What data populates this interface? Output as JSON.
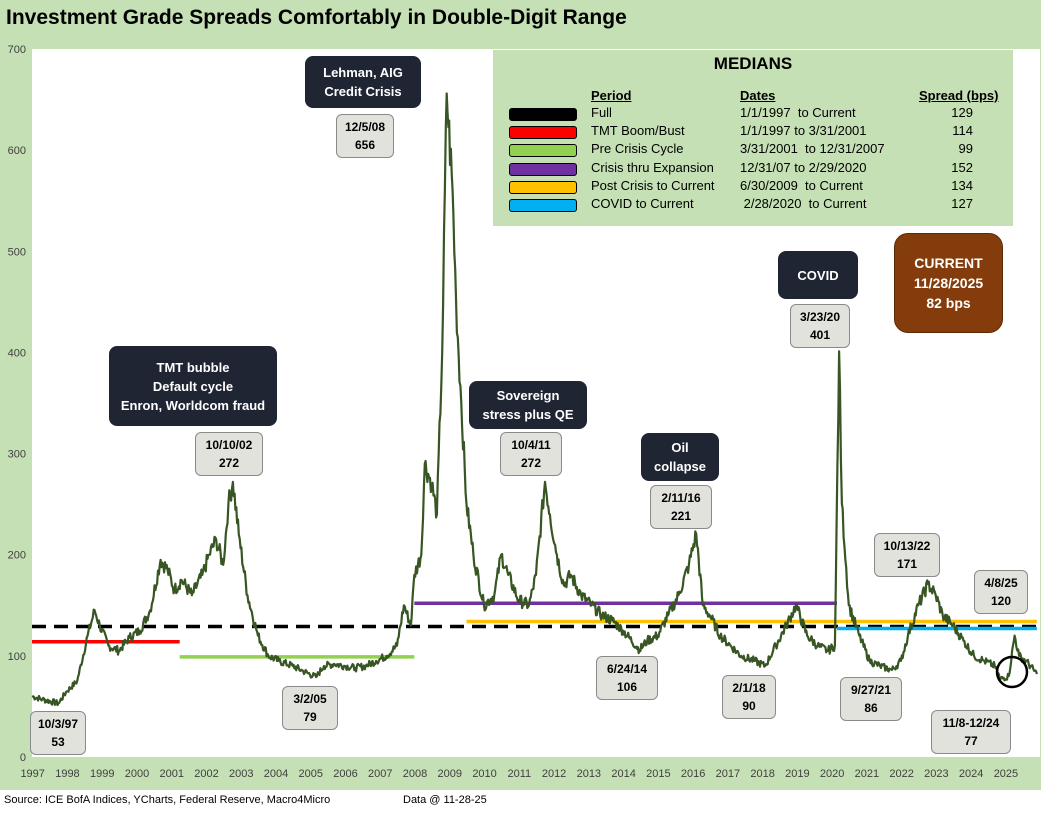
{
  "title": "Investment Grade Spreads Comfortably in Double-Digit Range",
  "footer": {
    "source": "Source: ICE BofA Indices, YCharts, Federal Reserve, Macro4Micro",
    "data_date": "Data @ 11-28-25"
  },
  "medians_table": {
    "title": "MEDIANS",
    "headers": {
      "period": "Period",
      "dates": "Dates",
      "spread": "Spread (bps)"
    },
    "rows": [
      {
        "period": "Full",
        "dates": "1/1/1997  to Current",
        "spread": "129",
        "color": "#000000"
      },
      {
        "period": "TMT Boom/Bust",
        "dates": "1/1/1997 to 3/31/2001",
        "spread": "114",
        "color": "#ff0000"
      },
      {
        "period": "Pre Crisis Cycle",
        "dates": "3/31/2001  to 12/31/2007",
        "spread": "99",
        "color": "#92d050"
      },
      {
        "period": "Crisis thru Expansion",
        "dates": "12/31/07 to 2/29/2020",
        "spread": "152",
        "color": "#7030a0"
      },
      {
        "period": "Post Crisis to Current",
        "dates": "6/30/2009  to Current",
        "spread": "134",
        "color": "#ffc000"
      },
      {
        "period": "COVID to Current",
        "dates": " 2/28/2020  to Current",
        "spread": "127",
        "color": "#00b0f0"
      }
    ]
  },
  "event_boxes": {
    "lehman": {
      "line1": "Lehman, AIG",
      "line2": "Credit Crisis"
    },
    "tmt": {
      "line1": "TMT bubble",
      "line2": "Default cycle",
      "line3": "Enron, Worldcom fraud"
    },
    "sovereign": {
      "line1": "Sovereign",
      "line2": "stress plus QE"
    },
    "oil": {
      "line1": "Oil",
      "line2": "collapse"
    },
    "covid": {
      "line1": "COVID"
    }
  },
  "current_box": {
    "line1": "CURRENT",
    "line2": "11/28/2025",
    "line3": "82 bps"
  },
  "data_labels": {
    "l_970": {
      "date": "10/3/97",
      "value": "53"
    },
    "l_021": {
      "date": "10/10/02",
      "value": "272"
    },
    "l_050": {
      "date": "3/2/05",
      "value": "79"
    },
    "l_081": {
      "date": "12/5/08",
      "value": "656"
    },
    "l_111": {
      "date": "10/4/11",
      "value": "272"
    },
    "l_140": {
      "date": "6/24/14",
      "value": "106"
    },
    "l_161": {
      "date": "2/11/16",
      "value": "221"
    },
    "l_180": {
      "date": "2/1/18",
      "value": "90"
    },
    "l_201": {
      "date": "3/23/20",
      "value": "401"
    },
    "l_210": {
      "date": "9/27/21",
      "value": "86"
    },
    "l_221": {
      "date": "10/13/22",
      "value": "171"
    },
    "l_240": {
      "date": "11/8-12/24",
      "value": "77"
    },
    "l_251": {
      "date": "4/8/25",
      "value": "120"
    }
  },
  "chart_data": {
    "type": "line",
    "title": "Investment Grade Spreads Comfortably in Double-Digit Range",
    "xlabel": "",
    "ylabel": "",
    "xlim": [
      1997.0,
      2026.0
    ],
    "ylim": [
      0,
      700
    ],
    "y_ticks": [
      0,
      100,
      200,
      300,
      400,
      500,
      600,
      700
    ],
    "x_ticks": [
      "1997",
      "1998",
      "1999",
      "2000",
      "2001",
      "2002",
      "2003",
      "2004",
      "2005",
      "2006",
      "2007",
      "2008",
      "2009",
      "2010",
      "2011",
      "2012",
      "2013",
      "2014",
      "2015",
      "2016",
      "2017",
      "2018",
      "2019",
      "2020",
      "2021",
      "2022",
      "2023",
      "2024",
      "2025"
    ],
    "grid": false,
    "line_color": "#375623",
    "series": [
      {
        "x": [
          1997.0,
          1997.3,
          1997.76,
          1998.0,
          1998.3,
          1998.6,
          1998.8,
          1998.95,
          1999.2,
          1999.5,
          1999.8,
          2000.1,
          2000.4,
          2000.7,
          2000.9,
          2001.1,
          2001.3,
          2001.6,
          2001.9,
          2002.1,
          2002.3,
          2002.5,
          2002.65,
          2002.78,
          2002.95,
          2003.2,
          2003.5,
          2003.8,
          2004.1,
          2004.5,
          2004.8,
          2005.17,
          2005.4,
          2005.7,
          2006.0,
          2006.3,
          2006.6,
          2006.9,
          2007.2,
          2007.5,
          2007.7,
          2007.9,
          2008.0,
          2008.2,
          2008.3,
          2008.5,
          2008.65,
          2008.8,
          2008.93,
          2009.1,
          2009.2,
          2009.35,
          2009.5,
          2009.7,
          2010.0,
          2010.3,
          2010.5,
          2010.7,
          2011.0,
          2011.3,
          2011.5,
          2011.76,
          2011.9,
          2012.1,
          2012.3,
          2012.5,
          2012.8,
          2013.1,
          2013.4,
          2013.7,
          2014.0,
          2014.48,
          2014.7,
          2015.0,
          2015.3,
          2015.6,
          2015.9,
          2016.11,
          2016.3,
          2016.5,
          2016.8,
          2017.1,
          2017.4,
          2017.8,
          2018.09,
          2018.4,
          2018.7,
          2018.98,
          2019.3,
          2019.6,
          2019.9,
          2020.1,
          2020.22,
          2020.3,
          2020.5,
          2020.8,
          2021.1,
          2021.4,
          2021.74,
          2022.0,
          2022.2,
          2022.5,
          2022.78,
          2023.0,
          2023.2,
          2023.5,
          2023.8,
          2024.1,
          2024.4,
          2024.7,
          2024.86,
          2025.1,
          2025.27,
          2025.4,
          2025.6,
          2025.91
        ],
        "y": [
          60,
          57,
          53,
          65,
          75,
          120,
          145,
          130,
          110,
          105,
          118,
          125,
          145,
          195,
          185,
          165,
          175,
          160,
          180,
          200,
          215,
          190,
          250,
          272,
          220,
          160,
          120,
          100,
          95,
          90,
          85,
          79,
          90,
          92,
          90,
          88,
          90,
          95,
          100,
          110,
          150,
          130,
          180,
          200,
          290,
          270,
          240,
          400,
          656,
          560,
          450,
          350,
          250,
          200,
          150,
          160,
          200,
          180,
          155,
          150,
          180,
          272,
          240,
          200,
          170,
          180,
          160,
          150,
          140,
          135,
          125,
          106,
          115,
          120,
          140,
          160,
          190,
          221,
          150,
          140,
          120,
          110,
          100,
          95,
          90,
          110,
          130,
          150,
          120,
          110,
          105,
          110,
          401,
          250,
          150,
          120,
          95,
          90,
          86,
          95,
          120,
          150,
          171,
          160,
          140,
          130,
          115,
          100,
          95,
          90,
          77,
          80,
          120,
          100,
          95,
          82
        ]
      }
    ],
    "median_lines": [
      {
        "name": "Full",
        "y": 129,
        "x_start": 1997.0,
        "x_end": 2025.91,
        "color": "#000000",
        "dashed": true
      },
      {
        "name": "TMT Boom/Bust",
        "y": 114,
        "x_start": 1997.0,
        "x_end": 2001.25,
        "color": "#ff0000"
      },
      {
        "name": "Pre Crisis Cycle",
        "y": 99,
        "x_start": 2001.25,
        "x_end": 2008.0,
        "color": "#92d050"
      },
      {
        "name": "Crisis thru Expansion",
        "y": 152,
        "x_start": 2008.0,
        "x_end": 2020.16,
        "color": "#7030a0"
      },
      {
        "name": "Post Crisis to Current",
        "y": 134,
        "x_start": 2009.5,
        "x_end": 2025.91,
        "color": "#ffc000"
      },
      {
        "name": "COVID to Current",
        "y": 127,
        "x_start": 2020.16,
        "x_end": 2025.91,
        "color": "#00b0f0"
      }
    ]
  }
}
